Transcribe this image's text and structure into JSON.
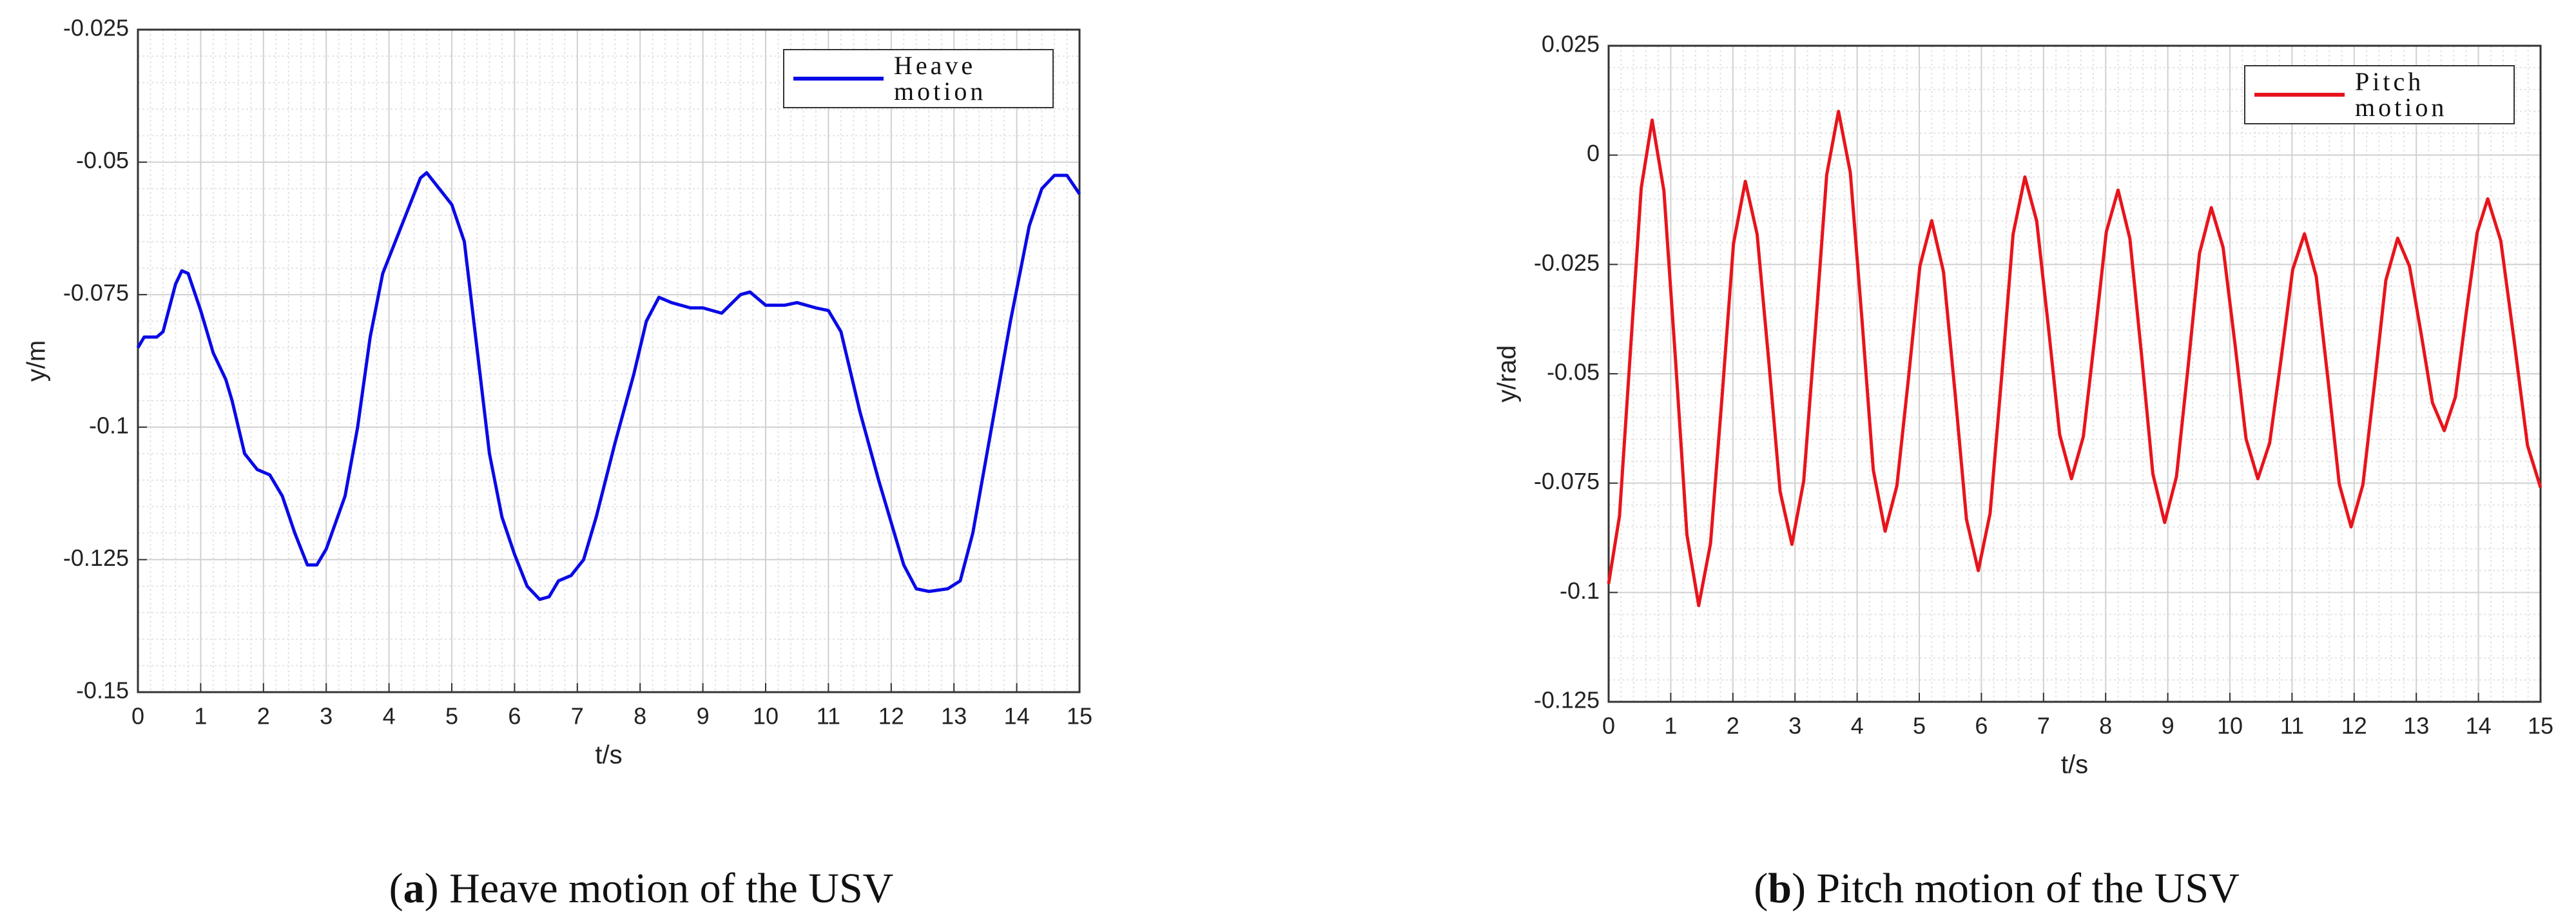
{
  "chart_data": [
    {
      "type": "line",
      "xlabel": "t/s",
      "ylabel": "y/m",
      "caption": [
        "(",
        "a",
        ") Heave motion of the USV"
      ],
      "xlim": [
        0,
        15
      ],
      "xticks": [
        0,
        1,
        2,
        3,
        4,
        5,
        6,
        7,
        8,
        9,
        10,
        11,
        12,
        13,
        14,
        15
      ],
      "ylim": [
        -0.15,
        -0.025
      ],
      "yticks": [
        -0.15,
        -0.125,
        -0.1,
        -0.075,
        -0.05,
        -0.025
      ],
      "grid": true,
      "minor_grid": true,
      "legend": "upper right",
      "x": [
        0,
        0.1,
        0.3,
        0.4,
        0.6,
        0.7,
        0.8,
        1.0,
        1.2,
        1.4,
        1.5,
        1.7,
        1.9,
        2.1,
        2.3,
        2.5,
        2.7,
        2.85,
        3.0,
        3.3,
        3.5,
        3.7,
        3.9,
        4.1,
        4.3,
        4.5,
        4.6,
        4.8,
        5.0,
        5.2,
        5.4,
        5.6,
        5.8,
        6.0,
        6.2,
        6.4,
        6.55,
        6.7,
        6.9,
        7.1,
        7.3,
        7.6,
        7.9,
        8.1,
        8.3,
        8.5,
        8.8,
        9.0,
        9.3,
        9.6,
        9.75,
        10.0,
        10.3,
        10.5,
        10.8,
        11.0,
        11.2,
        11.5,
        11.8,
        12.0,
        12.2,
        12.4,
        12.6,
        12.9,
        13.1,
        13.3,
        13.6,
        13.9,
        14.2,
        14.4,
        14.6,
        14.8,
        15.0
      ],
      "series": [
        {
          "name": "Heave motion",
          "color": "#0a0ae6",
          "values": [
            -0.085,
            -0.083,
            -0.083,
            -0.082,
            -0.073,
            -0.0705,
            -0.071,
            -0.078,
            -0.086,
            -0.091,
            -0.095,
            -0.105,
            -0.108,
            -0.109,
            -0.113,
            -0.12,
            -0.126,
            -0.126,
            -0.123,
            -0.113,
            -0.1,
            -0.083,
            -0.071,
            -0.065,
            -0.059,
            -0.053,
            -0.052,
            -0.055,
            -0.058,
            -0.065,
            -0.085,
            -0.105,
            -0.117,
            -0.124,
            -0.13,
            -0.1325,
            -0.132,
            -0.129,
            -0.128,
            -0.125,
            -0.117,
            -0.103,
            -0.09,
            -0.08,
            -0.0755,
            -0.0765,
            -0.0775,
            -0.0775,
            -0.0785,
            -0.075,
            -0.0745,
            -0.077,
            -0.077,
            -0.0765,
            -0.0775,
            -0.078,
            -0.082,
            -0.097,
            -0.11,
            -0.118,
            -0.126,
            -0.1305,
            -0.131,
            -0.1305,
            -0.129,
            -0.12,
            -0.1,
            -0.08,
            -0.062,
            -0.055,
            -0.0525,
            -0.0525,
            -0.056
          ]
        }
      ]
    },
    {
      "type": "line",
      "xlabel": "t/s",
      "ylabel": "y/rad",
      "caption": [
        "(",
        "b",
        ") Pitch motion of the USV"
      ],
      "xlim": [
        0,
        15
      ],
      "xticks": [
        0,
        1,
        2,
        3,
        4,
        5,
        6,
        7,
        8,
        9,
        10,
        11,
        12,
        13,
        14,
        15
      ],
      "ylim": [
        -0.125,
        0.025
      ],
      "yticks": [
        -0.125,
        -0.1,
        -0.075,
        -0.05,
        -0.025,
        0,
        0.025
      ],
      "grid": true,
      "minor_grid": true,
      "legend": "upper right",
      "x": [
        0,
        0.175,
        0.35,
        0.525,
        0.7,
        0.89,
        1.08,
        1.26,
        1.45,
        1.64,
        1.83,
        2.01,
        2.2,
        2.39,
        2.58,
        2.76,
        2.95,
        3.14,
        3.33,
        3.51,
        3.7,
        3.89,
        4.08,
        4.26,
        4.45,
        4.64,
        4.83,
        5.01,
        5.2,
        5.39,
        5.58,
        5.76,
        5.95,
        6.14,
        6.33,
        6.51,
        6.7,
        6.89,
        7.08,
        7.26,
        7.45,
        7.64,
        7.83,
        8.01,
        8.2,
        8.39,
        8.58,
        8.76,
        8.95,
        9.14,
        9.33,
        9.51,
        9.7,
        9.89,
        10.08,
        10.26,
        10.45,
        10.64,
        10.83,
        11.01,
        11.2,
        11.39,
        11.58,
        11.76,
        11.95,
        12.14,
        12.33,
        12.51,
        12.7,
        12.89,
        13.08,
        13.26,
        13.45,
        13.63,
        13.8,
        13.98,
        14.15,
        14.36,
        14.58,
        14.79,
        15
      ],
      "series": [
        {
          "name": "Pitch motion",
          "color": "#e8141c",
          "values": [
            -0.098,
            -0.0825,
            -0.045,
            -0.0075,
            0.008,
            -0.0082,
            -0.0475,
            -0.0868,
            -0.103,
            -0.0888,
            -0.0545,
            -0.0202,
            -0.006,
            -0.0181,
            -0.0475,
            -0.0769,
            -0.089,
            -0.0745,
            -0.0395,
            -0.0045,
            0.01,
            -0.004,
            -0.038,
            -0.072,
            -0.086,
            -0.0756,
            -0.0505,
            -0.0254,
            -0.015,
            -0.0267,
            -0.055,
            -0.0833,
            -0.095,
            -0.0819,
            -0.05,
            -0.0181,
            -0.005,
            -0.0151,
            -0.0395,
            -0.0639,
            -0.074,
            -0.0644,
            -0.041,
            -0.0176,
            -0.008,
            -0.0191,
            -0.046,
            -0.0729,
            -0.084,
            -0.0735,
            -0.048,
            -0.0225,
            -0.012,
            -0.0211,
            -0.043,
            -0.0649,
            -0.074,
            -0.0658,
            -0.046,
            -0.0262,
            -0.018,
            -0.0278,
            -0.0515,
            -0.0752,
            -0.085,
            -0.0754,
            -0.052,
            -0.0286,
            -0.019,
            -0.0254,
            -0.041,
            -0.0566,
            -0.063,
            -0.0553,
            -0.0365,
            -0.0177,
            -0.01,
            -0.0196,
            -0.043,
            -0.0664,
            -0.076
          ]
        }
      ]
    }
  ]
}
